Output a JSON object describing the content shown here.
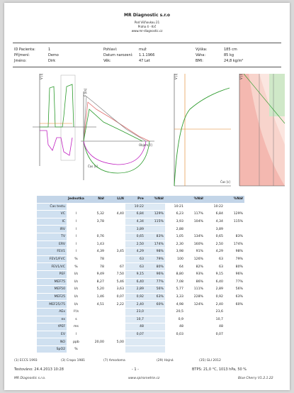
{
  "header": {
    "title": "MR Diagnostic s.r.o",
    "address": [
      "Pod Višňovkou 21",
      "Praha 4 - Krč",
      "www.mr-diagnostic.cz"
    ]
  },
  "patient": [
    [
      {
        "label": "ID Pacienta:",
        "value": "1"
      },
      {
        "label": "Příjmení:",
        "value": "Demo"
      },
      {
        "label": "Jméno:",
        "value": "Dirk"
      }
    ],
    [
      {
        "label": "Pohlaví:",
        "value": "muž"
      },
      {
        "label": "Datum narození:",
        "value": "1.1.1966"
      },
      {
        "label": "Věk:",
        "value": "47 Let"
      }
    ],
    [
      {
        "label": "Výška:",
        "value": "185 cm"
      },
      {
        "label": "Váha:",
        "value": "85 kg"
      },
      {
        "label": "BMI:",
        "value": "24,8 kg/m²"
      }
    ]
  ],
  "charts": {
    "flow_label": "F [l/s]",
    "volume_label": "V [l]",
    "time_label": "Čas [s]",
    "objem_label": "Objem [l]"
  },
  "table": {
    "header": [
      null,
      "Jednotka",
      "Náł",
      "LLN",
      "Pre",
      "%Náł",
      null,
      "%Náł",
      null,
      "%Náł"
    ],
    "rows": [
      [
        "Čas testu",
        null,
        null,
        null,
        "10:22",
        null,
        "10:21",
        null,
        "10:22",
        null
      ],
      [
        "VC",
        "l",
        "5,32",
        "4,40",
        "6,84",
        "129%",
        "6,23",
        "117%",
        "6,84",
        "129%"
      ],
      [
        "IC",
        "l",
        "3,78",
        null,
        "4,34",
        "115%",
        "3,93",
        "104%",
        "4,34",
        "115%"
      ],
      [
        "IRV",
        "l",
        null,
        null,
        "3,89",
        null,
        "2,88",
        null,
        "3,89",
        null
      ],
      [
        "TV",
        "l",
        "0,76",
        null,
        "0,65",
        "83%",
        "1,05",
        "134%",
        "0,65",
        "83%"
      ],
      [
        "ERV",
        "l",
        "1,43",
        null,
        "2,50",
        "174%",
        "2,30",
        "160%",
        "2,50",
        "174%"
      ],
      [
        "FEV1",
        "l",
        "4,39",
        "3,45",
        "4,29",
        "98%",
        "3,98",
        "91%",
        "4,29",
        "98%"
      ],
      [
        "FEV1/FVC",
        "%",
        "78",
        null,
        "63",
        "79%",
        "100",
        "126%",
        "63",
        "79%"
      ],
      [
        "FEV1/VC",
        "%",
        "78",
        "67",
        "63",
        "80%",
        "64",
        "82%",
        "63",
        "80%"
      ],
      [
        "PEF",
        "l/s",
        "9,49",
        "7,50",
        "9,15",
        "96%",
        "8,80",
        "93%",
        "9,15",
        "96%"
      ],
      [
        "MEF75",
        "l/s",
        "8,27",
        "5,46",
        "6,40",
        "77%",
        "7,08",
        "86%",
        "6,40",
        "77%"
      ],
      [
        "MEF50",
        "l/s",
        "5,20",
        "3,63",
        "2,89",
        "56%",
        "5,77",
        "111%",
        "2,89",
        "56%"
      ],
      [
        "MEF25",
        "l/s",
        "1,46",
        "0,07",
        "0,92",
        "63%",
        "3,33",
        "228%",
        "0,92",
        "63%"
      ],
      [
        "MEF25/75",
        "l/s",
        "4,51",
        "2,22",
        "2,40",
        "60%",
        "4,98",
        "124%",
        "2,40",
        "60%"
      ],
      [
        "AEx",
        "l²/s",
        null,
        null,
        "23,0",
        null,
        "20,5",
        null,
        "23,6",
        null
      ],
      [
        "ex",
        "s",
        null,
        null,
        "10,7",
        null,
        "0,9",
        null,
        "10,7",
        null
      ],
      [
        "tPEF",
        "ms",
        null,
        null,
        "48",
        null,
        "48",
        null,
        "48",
        null
      ],
      [
        "EV",
        "l",
        null,
        null,
        "0,07",
        null,
        "0,03",
        null,
        "0,07",
        null
      ],
      [
        "NO",
        "ppb",
        "20,00",
        "5,00",
        null,
        null,
        null,
        null,
        null,
        null
      ],
      [
        "SpO2",
        "%",
        null,
        null,
        null,
        null,
        null,
        null,
        null,
        null
      ]
    ]
  },
  "footer": {
    "references": [
      "(1) ECCS 1993",
      "(3) Crapo 1981",
      "(7) Amodoma",
      "(29) Hajná",
      "(35) GLI 2012"
    ],
    "tested": "Testováno: 24.4.2013 10:28",
    "page": "- 1 -",
    "btps": "BTPS: 21,0 °C, 1013 hPa, 50 %",
    "company": "MR Diagnostic s.r.o.",
    "web": "www.spirometrie.cz",
    "software": "Blue Cherry V1.2.1.22"
  }
}
